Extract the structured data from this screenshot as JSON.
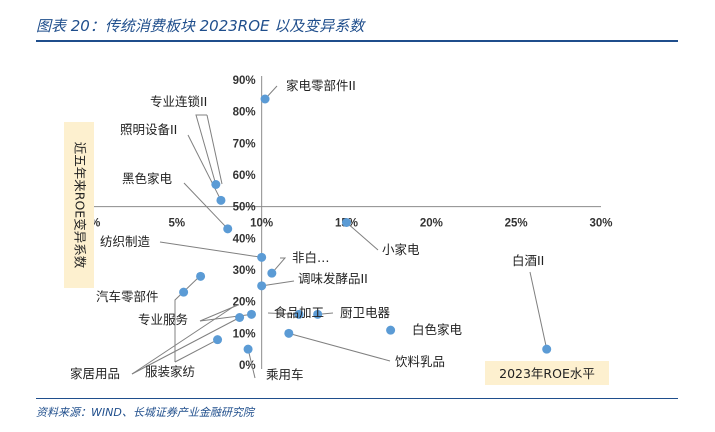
{
  "figure_title": "图表 20：传统消费板块 2023ROE 以及变异系数",
  "source_note": "资料来源：WIND、长城证券产业金融研究院",
  "chart_data": {
    "type": "scatter",
    "xlabel": "2023年ROE水平",
    "ylabel": "近五年来ROE变异系数",
    "xlim": [
      0,
      30
    ],
    "ylim": [
      0,
      90
    ],
    "x_ticks": [
      "0%",
      "5%",
      "10%",
      "15%",
      "20%",
      "25%",
      "30%"
    ],
    "y_ticks": [
      "0%",
      "10%",
      "20%",
      "30%",
      "40%",
      "50%",
      "60%",
      "70%",
      "80%",
      "90%"
    ],
    "grid": false,
    "point_color": "#5b9bd5",
    "points": [
      {
        "label": "家电零部件II",
        "x": 10.2,
        "y": 84
      },
      {
        "label": "专业连锁II",
        "x": 7.3,
        "y": 57
      },
      {
        "label": "照明设备II",
        "x": 7.6,
        "y": 52
      },
      {
        "label": "黑色家电",
        "x": 8.0,
        "y": 43
      },
      {
        "label": "纺织制造",
        "x": 10.0,
        "y": 34
      },
      {
        "label": "小家电",
        "x": 15.0,
        "y": 45
      },
      {
        "label": "非白…",
        "x": 10.6,
        "y": 29
      },
      {
        "label": "调味发酵品II",
        "x": 10.0,
        "y": 25
      },
      {
        "label": "白酒II",
        "x": 26.8,
        "y": 5
      },
      {
        "label": "汽车零部件",
        "x": 6.4,
        "y": 28
      },
      {
        "label": "",
        "x": 5.4,
        "y": 23
      },
      {
        "label": "专业服务",
        "x": 9.4,
        "y": 16
      },
      {
        "label": "家居用品",
        "x": 8.7,
        "y": 15
      },
      {
        "label": "食品加工",
        "x": 12.2,
        "y": 16
      },
      {
        "label": "厨卫电器",
        "x": 13.3,
        "y": 16
      },
      {
        "label": "白色家电",
        "x": 17.6,
        "y": 11
      },
      {
        "label": "饮料乳品",
        "x": 11.6,
        "y": 10
      },
      {
        "label": "服装家纺",
        "x": 7.4,
        "y": 8
      },
      {
        "label": "乘用车",
        "x": 9.2,
        "y": 5
      }
    ]
  }
}
